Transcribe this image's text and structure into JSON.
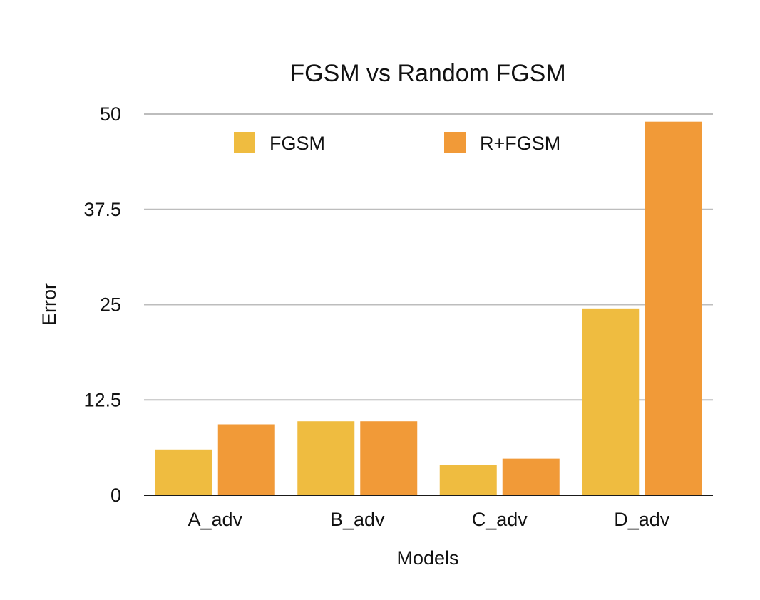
{
  "chart_data": {
    "type": "bar",
    "title": "FGSM vs Random FGSM",
    "xlabel": "Models",
    "ylabel": "Error",
    "categories": [
      "A_adv",
      "B_adv",
      "C_adv",
      "D_adv"
    ],
    "series": [
      {
        "name": "FGSM",
        "color": "#efbc40",
        "values": [
          6.0,
          9.7,
          4.0,
          24.5
        ]
      },
      {
        "name": "R+FGSM",
        "color": "#f19a38",
        "values": [
          9.3,
          9.7,
          4.8,
          49.0
        ]
      }
    ],
    "ylim": [
      0,
      50
    ],
    "yticks": [
      0,
      12.5,
      25,
      37.5,
      50
    ],
    "ytick_labels": [
      "0",
      "12.5",
      "25",
      "37.5",
      "50"
    ],
    "grid": true,
    "legend_position": "top"
  }
}
